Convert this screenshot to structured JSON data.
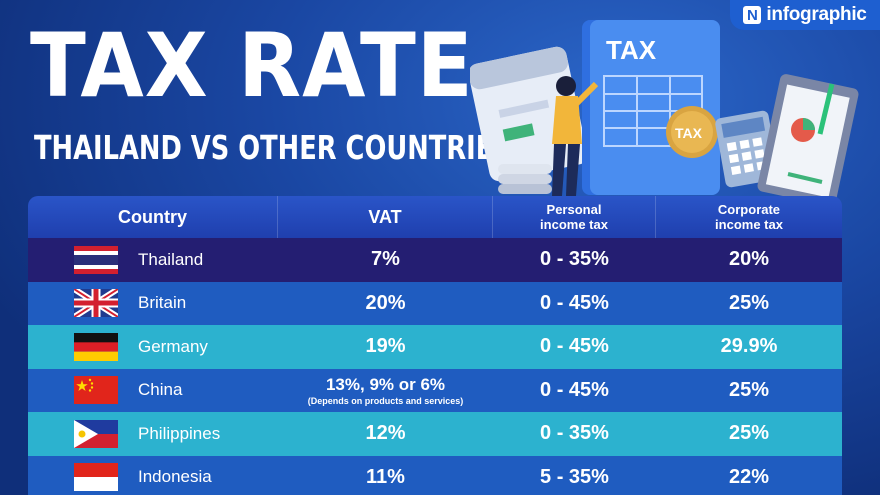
{
  "brand": {
    "mark": "N",
    "name": "infographic"
  },
  "title": "TAX RATE",
  "subtitle": "THAILAND VS OTHER COUNTRIES",
  "illustration": {
    "doc_label": "TAX",
    "coin_label": "TAX"
  },
  "table": {
    "headers": {
      "country": "Country",
      "vat": "VAT",
      "personal_line1": "Personal",
      "personal_line2": "income tax",
      "corporate_line1": "Corporate",
      "corporate_line2": "income tax"
    },
    "rows": [
      {
        "country": "Thailand",
        "flag": "thailand-flag",
        "vat": "7%",
        "personal": "0 - 35%",
        "corporate": "20%"
      },
      {
        "country": "Britain",
        "flag": "uk-flag",
        "vat": "20%",
        "personal": "0 - 45%",
        "corporate": "25%"
      },
      {
        "country": "Germany",
        "flag": "germany-flag",
        "vat": "19%",
        "personal": "0 - 45%",
        "corporate": "29.9%"
      },
      {
        "country": "China",
        "flag": "china-flag",
        "vat": "13%, 9% or 6%",
        "vat_note": "(Depends on products and services)",
        "personal": "0 - 45%",
        "corporate": "25%"
      },
      {
        "country": "Philippines",
        "flag": "philippines-flag",
        "vat": "12%",
        "personal": "0 - 35%",
        "corporate": "25%"
      },
      {
        "country": "Indonesia",
        "flag": "indonesia-flag",
        "vat": "11%",
        "personal": "5 - 35%",
        "corporate": "22%"
      }
    ]
  },
  "colors": {
    "background": "#1a47a3",
    "row_highlight": "#241e72",
    "row_teal": "#2cb2cf",
    "row_blue": "#1f5cc0"
  }
}
